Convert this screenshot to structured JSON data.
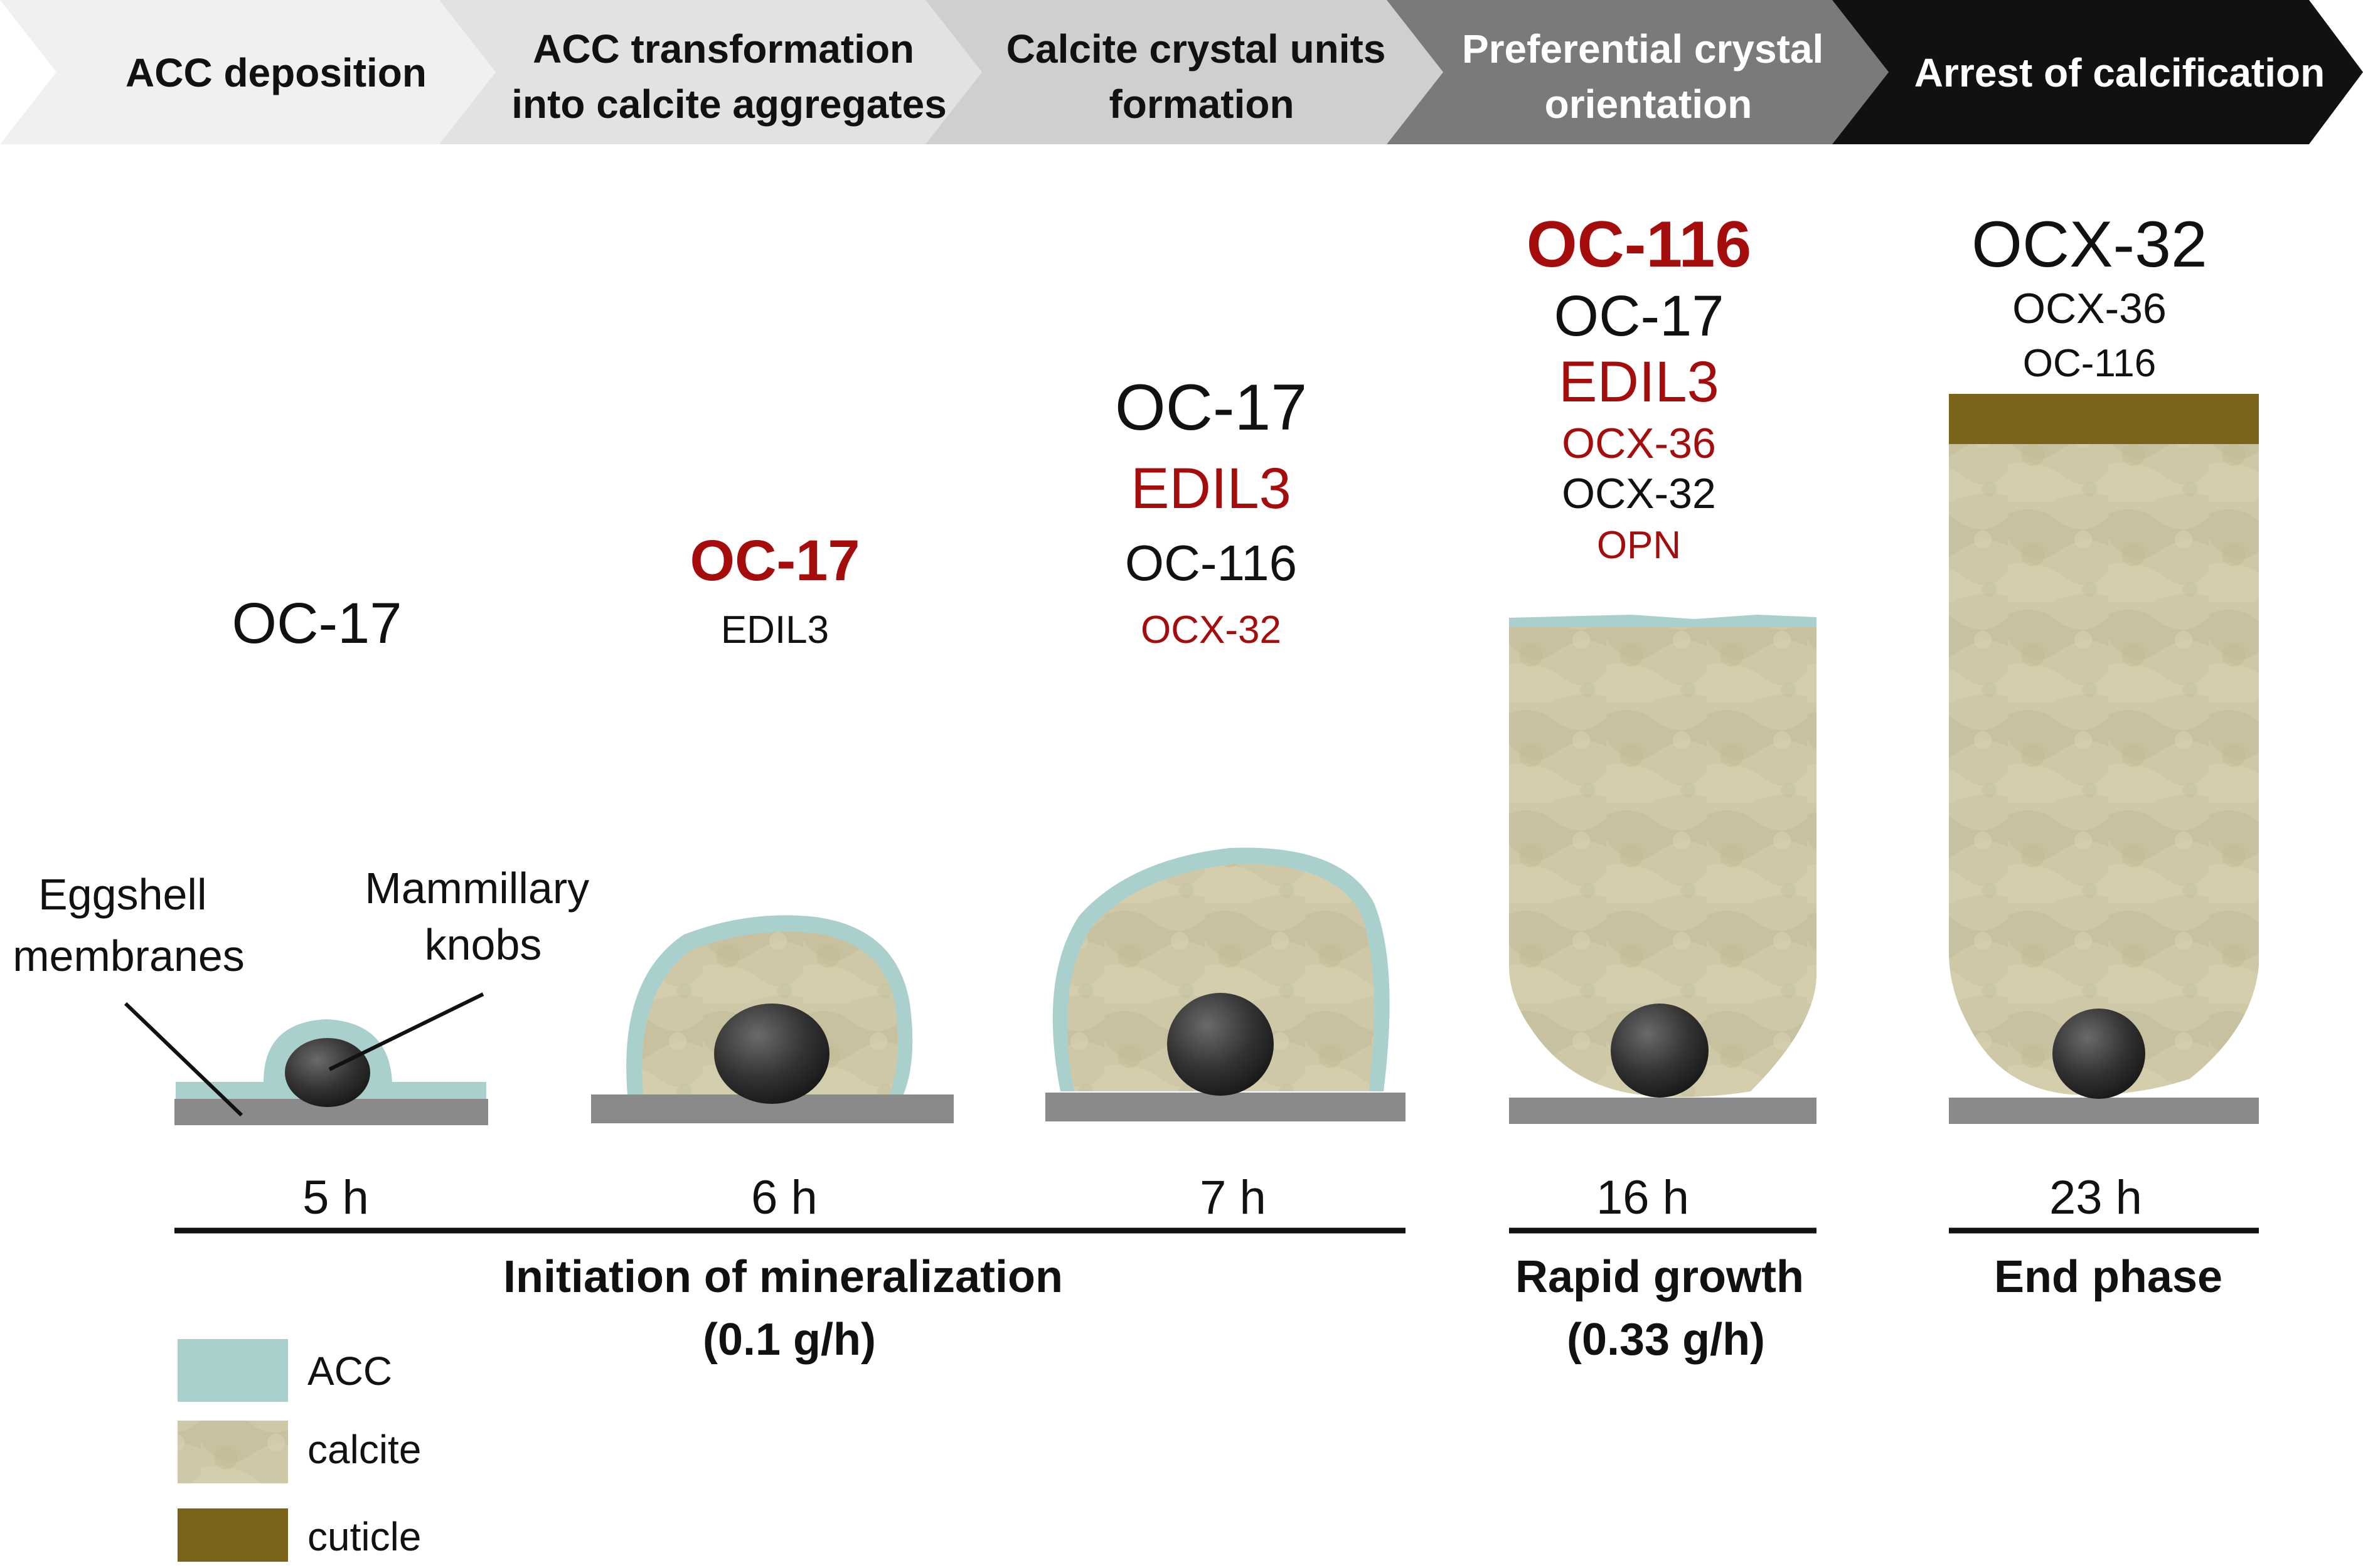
{
  "colors": {
    "acc": "#a9d0cc",
    "calcite": "#cfc8a6",
    "cuticle": "#7b631a",
    "membrane": "#8a8a8a",
    "knob": "#3a3a3a",
    "highlight_red": "#a50d0d",
    "text_black": "#111111"
  },
  "steps": [
    {
      "lines": [
        "ACC deposition"
      ],
      "fill": "#f0f0f0",
      "text_color": "#111111"
    },
    {
      "lines": [
        "ACC transformation",
        "into calcite aggregates"
      ],
      "fill": "#e2e2e2",
      "text_color": "#111111"
    },
    {
      "lines": [
        "Calcite crystal units",
        "formation"
      ],
      "fill": "#cfcfcf",
      "text_color": "#111111"
    },
    {
      "lines": [
        "Preferential crystal",
        "orientation"
      ],
      "fill": "#7a7a7a",
      "text_color": "#ffffff"
    },
    {
      "lines": [
        "Arrest of calcification"
      ],
      "fill": "#111111",
      "text_color": "#ffffff"
    }
  ],
  "stages": [
    {
      "time": "5 h",
      "proteins": [
        {
          "text": "OC-17",
          "color": "#111111",
          "bold": false,
          "size": "xl"
        }
      ]
    },
    {
      "time": "6 h",
      "proteins": [
        {
          "text": "OC-17",
          "color": "#a50d0d",
          "bold": true,
          "size": "xl"
        },
        {
          "text": "EDIL3",
          "color": "#111111",
          "bold": false,
          "size": "s"
        }
      ]
    },
    {
      "time": "7 h",
      "proteins": [
        {
          "text": "OC-17",
          "color": "#111111",
          "bold": false,
          "size": "xxl"
        },
        {
          "text": "EDIL3",
          "color": "#a50d0d",
          "bold": false,
          "size": "xl"
        },
        {
          "text": "OC-116",
          "color": "#111111",
          "bold": false,
          "size": "l"
        },
        {
          "text": "OCX-32",
          "color": "#a50d0d",
          "bold": false,
          "size": "s"
        }
      ]
    },
    {
      "time": "16 h",
      "proteins": [
        {
          "text": "OC-116",
          "color": "#a50d0d",
          "bold": true,
          "size": "xxl"
        },
        {
          "text": "OC-17",
          "color": "#111111",
          "bold": false,
          "size": "xl"
        },
        {
          "text": "EDIL3",
          "color": "#a50d0d",
          "bold": false,
          "size": "xl"
        },
        {
          "text": "OCX-36",
          "color": "#a50d0d",
          "bold": false,
          "size": "m"
        },
        {
          "text": "OCX-32",
          "color": "#111111",
          "bold": false,
          "size": "m"
        },
        {
          "text": "OPN",
          "color": "#a50d0d",
          "bold": false,
          "size": "s"
        }
      ]
    },
    {
      "time": "23 h",
      "proteins": [
        {
          "text": "OCX-32",
          "color": "#111111",
          "bold": false,
          "size": "xxl"
        },
        {
          "text": "OCX-36",
          "color": "#111111",
          "bold": false,
          "size": "m"
        },
        {
          "text": "OC-116",
          "color": "#111111",
          "bold": false,
          "size": "s"
        }
      ]
    }
  ],
  "phases": [
    {
      "lines": [
        "Initiation of mineralization",
        "(0.1 g/h)"
      ]
    },
    {
      "lines": [
        "Rapid growth",
        "(0.33 g/h)"
      ]
    },
    {
      "lines": [
        "End phase"
      ]
    }
  ],
  "annotations": {
    "membranes": [
      "Eggshell",
      "membranes"
    ],
    "knobs": [
      "Mammillary",
      "knobs"
    ]
  },
  "legend": [
    {
      "label": "ACC",
      "color": "#a9d0cc"
    },
    {
      "label": "calcite",
      "color": "#cfc8a6"
    },
    {
      "label": "cuticle",
      "color": "#7b631a"
    }
  ]
}
